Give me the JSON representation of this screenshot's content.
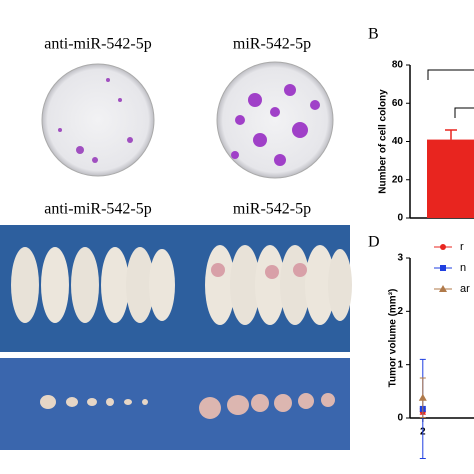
{
  "panels": {
    "top_left_caption": "anti-miR-542-5p",
    "top_right_caption": "miR-542-5p",
    "bottom_left_caption": "anti-miR-542-5p",
    "bottom_right_caption": "miR-542-5p"
  },
  "chart_data": [
    {
      "type": "bar",
      "panel_label": "B",
      "ylabel": "Number of cell colony",
      "categories": [
        null
      ],
      "values": [
        41
      ],
      "errors": [
        5
      ],
      "color": "#e8251f",
      "ylim": [
        0,
        80
      ],
      "yticks": [
        0,
        20,
        40,
        60,
        80
      ]
    },
    {
      "type": "line",
      "panel_label": "D",
      "ylabel": "Tumor volume (mm³)",
      "x": [
        2
      ],
      "xlim": [
        1.7,
        3.2
      ],
      "xticks": [
        2
      ],
      "ylim": [
        0,
        3
      ],
      "yticks": [
        0,
        1,
        2,
        3
      ],
      "series": [
        {
          "name": "r",
          "color": "#e8251f",
          "marker": "circle",
          "values": [
            0.12
          ],
          "errors": [
            0.05
          ]
        },
        {
          "name": "n",
          "color": "#1f3fe0",
          "marker": "square",
          "values": [
            0.17
          ],
          "errors": [
            0.93
          ]
        },
        {
          "name": "ar",
          "color": "#b07a4a",
          "marker": "triangle",
          "values": [
            0.38
          ],
          "errors": [
            0.37
          ]
        }
      ]
    }
  ]
}
